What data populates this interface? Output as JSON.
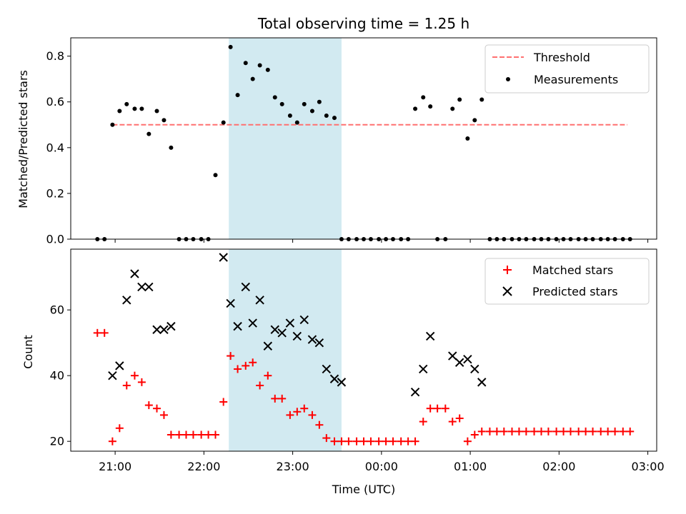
{
  "colors": {
    "threshold": "#ff7070",
    "shade": "#add8e6",
    "measure": "#000000",
    "matched": "#ff0000",
    "predicted": "#000000"
  },
  "chart_data": [
    {
      "type": "scatter",
      "title": "Total observing time = 1.25 h",
      "ylabel": "Matched/Predicted stars",
      "ylim": [
        0,
        0.88
      ],
      "yticks": [
        0,
        0.2,
        0.4,
        0.6,
        0.8
      ],
      "ytick_labels": [
        "0.0",
        "0.2",
        "0.4",
        "0.6",
        "0.8"
      ],
      "xlim_hours": [
        20.5,
        27.1
      ],
      "xticks_hours": [
        21,
        22,
        23,
        24,
        25,
        26,
        27
      ],
      "shaded_span_hours": [
        22.28,
        23.55
      ],
      "threshold": {
        "label": "Threshold",
        "value": 0.5,
        "x_range_hours": [
          20.97,
          26.77
        ]
      },
      "legend": {
        "position": "upper right",
        "entries": [
          "Threshold",
          "Measurements"
        ]
      },
      "series": [
        {
          "name": "Measurements",
          "x_hours": [
            20.8,
            20.88,
            20.97,
            21.05,
            21.13,
            21.22,
            21.3,
            21.38,
            21.47,
            21.55,
            21.63,
            21.72,
            21.8,
            21.88,
            21.97,
            22.05,
            22.13,
            22.22,
            22.3,
            22.38,
            22.47,
            22.55,
            22.63,
            22.72,
            22.8,
            22.88,
            22.97,
            23.05,
            23.13,
            23.22,
            23.3,
            23.38,
            23.47,
            23.55,
            23.63,
            23.72,
            23.8,
            23.88,
            23.97,
            24.05,
            24.13,
            24.22,
            24.3,
            24.38,
            24.47,
            24.55,
            24.63,
            24.72,
            24.8,
            24.88,
            24.97,
            25.05,
            25.13,
            25.22,
            25.3,
            25.38,
            25.47,
            25.55,
            25.63,
            25.72,
            25.8,
            25.88,
            25.97,
            26.05,
            26.13,
            26.22,
            26.3,
            26.38,
            26.47,
            26.55,
            26.63,
            26.72,
            26.8
          ],
          "y": [
            0,
            0,
            0.5,
            0.56,
            0.59,
            0.57,
            0.57,
            0.46,
            0.56,
            0.52,
            0.4,
            0,
            0,
            0,
            0,
            0,
            0.28,
            0.51,
            0.84,
            0.63,
            0.77,
            0.7,
            0.76,
            0.74,
            0.62,
            0.59,
            0.54,
            0.51,
            0.59,
            0.56,
            0.6,
            0.54,
            0.53,
            0,
            0,
            0,
            0,
            0,
            0,
            0,
            0,
            0,
            0,
            0.57,
            0.62,
            0.58,
            0,
            0,
            0.57,
            0.61,
            0.44,
            0.52,
            0.61,
            0,
            0,
            0,
            0,
            0,
            0,
            0,
            0,
            0,
            0,
            0,
            0,
            0,
            0,
            0,
            0,
            0,
            0,
            0,
            0
          ]
        }
      ]
    },
    {
      "type": "scatter",
      "xlabel": "Time (UTC)",
      "ylabel": "Count",
      "ylim": [
        17,
        78.5
      ],
      "yticks": [
        20,
        40,
        60
      ],
      "ytick_labels": [
        "20",
        "40",
        "60"
      ],
      "xlim_hours": [
        20.5,
        27.1
      ],
      "xticks_hours": [
        21,
        22,
        23,
        24,
        25,
        26,
        27
      ],
      "xtick_labels": [
        "21:00",
        "22:00",
        "23:00",
        "00:00",
        "01:00",
        "02:00",
        "03:00"
      ],
      "shaded_span_hours": [
        22.28,
        23.55
      ],
      "legend": {
        "position": "upper right",
        "entries": [
          "Matched stars",
          "Predicted stars"
        ]
      },
      "series": [
        {
          "name": "Matched stars",
          "x_hours": [
            20.8,
            20.88,
            20.97,
            21.05,
            21.13,
            21.22,
            21.3,
            21.38,
            21.47,
            21.55,
            21.63,
            21.72,
            21.8,
            21.88,
            21.97,
            22.05,
            22.13,
            22.22,
            22.3,
            22.38,
            22.47,
            22.55,
            22.63,
            22.72,
            22.8,
            22.88,
            22.97,
            23.05,
            23.13,
            23.22,
            23.3,
            23.38,
            23.47,
            23.55,
            23.63,
            23.72,
            23.8,
            23.88,
            23.97,
            24.05,
            24.13,
            24.22,
            24.3,
            24.38,
            24.47,
            24.55,
            24.63,
            24.72,
            24.8,
            24.88,
            24.97,
            25.05,
            25.13,
            25.22,
            25.3,
            25.38,
            25.47,
            25.55,
            25.63,
            25.72,
            25.8,
            25.88,
            25.97,
            26.05,
            26.13,
            26.22,
            26.3,
            26.38,
            26.47,
            26.55,
            26.63,
            26.72,
            26.8
          ],
          "y": [
            53,
            53,
            20,
            24,
            37,
            40,
            38,
            31,
            30,
            28,
            22,
            22,
            22,
            22,
            22,
            22,
            22,
            32,
            46,
            42,
            43,
            44,
            37,
            40,
            33,
            33,
            28,
            29,
            30,
            28,
            25,
            21,
            20,
            20,
            20,
            20,
            20,
            20,
            20,
            20,
            20,
            20,
            20,
            20,
            26,
            30,
            30,
            30,
            26,
            27,
            20,
            22,
            23,
            23,
            23,
            23,
            23,
            23,
            23,
            23,
            23,
            23,
            23,
            23,
            23,
            23,
            23,
            23,
            23,
            23,
            23,
            23,
            23
          ]
        },
        {
          "name": "Predicted stars",
          "x_hours": [
            20.97,
            21.05,
            21.13,
            21.22,
            21.3,
            21.38,
            21.47,
            21.55,
            21.63,
            22.22,
            22.3,
            22.38,
            22.47,
            22.55,
            22.63,
            22.72,
            22.8,
            22.88,
            22.97,
            23.05,
            23.13,
            23.22,
            23.3,
            23.38,
            23.47,
            23.55,
            24.38,
            24.47,
            24.55,
            24.8,
            24.88,
            24.97,
            25.05,
            25.13
          ],
          "y": [
            40,
            43,
            63,
            71,
            67,
            67,
            54,
            54,
            55,
            76,
            62,
            55,
            67,
            56,
            63,
            49,
            54,
            53,
            56,
            52,
            57,
            51,
            50,
            42,
            39,
            38,
            35,
            42,
            52,
            46,
            44,
            45,
            42,
            38
          ]
        }
      ]
    }
  ]
}
